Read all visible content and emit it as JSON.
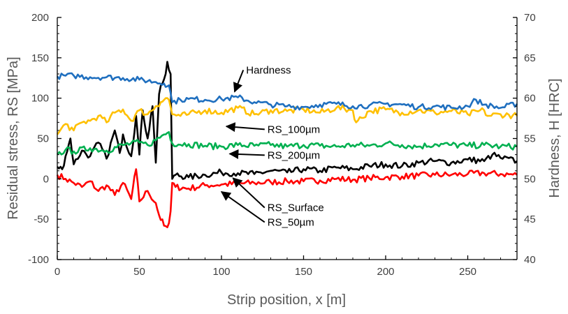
{
  "chart_data": {
    "type": "line",
    "xlabel": "Strip position, x [m]",
    "ylabel": "Residual stress, RS [MPa]",
    "y2label": "Hardness, H [HRC]",
    "xlim": [
      0,
      280
    ],
    "ylim": [
      -100,
      200
    ],
    "y2lim": [
      40,
      70
    ],
    "xticks": [
      0,
      50,
      100,
      150,
      200,
      250
    ],
    "yticks": [
      -100,
      -50,
      0,
      50,
      100,
      150,
      200
    ],
    "y2ticks": [
      40,
      45,
      50,
      55,
      60,
      65,
      70
    ],
    "grid": false,
    "legend": "none",
    "series": [
      {
        "name": "Hardness",
        "axis": "right",
        "color": "#1f6fbf",
        "x": [
          0,
          10,
          20,
          30,
          40,
          50,
          60,
          65,
          68,
          70,
          75,
          80,
          90,
          100,
          110,
          120,
          130,
          140,
          150,
          160,
          170,
          180,
          190,
          200,
          210,
          220,
          230,
          240,
          250,
          255,
          260,
          270,
          280
        ],
        "y": [
          62.7,
          62.8,
          62.6,
          62.6,
          62.5,
          62.3,
          62.0,
          61.8,
          61.6,
          59.5,
          59.8,
          59.9,
          59.8,
          59.9,
          60.1,
          59.5,
          59.2,
          59.0,
          58.9,
          59.2,
          59.3,
          59.0,
          59.1,
          59.3,
          59.2,
          58.9,
          59.0,
          58.8,
          59.0,
          59.8,
          59.2,
          58.8,
          59.3
        ]
      },
      {
        "name": "RS_100µm",
        "axis": "left",
        "color": "#ffc000",
        "x": [
          0,
          5,
          10,
          15,
          20,
          25,
          30,
          35,
          40,
          45,
          50,
          55,
          60,
          63,
          66,
          68,
          70,
          75,
          80,
          90,
          100,
          110,
          120,
          130,
          140,
          150,
          160,
          170,
          180,
          182,
          190,
          200,
          210,
          220,
          230,
          240,
          250,
          260,
          262,
          270,
          280
        ],
        "y": [
          55,
          68,
          60,
          70,
          72,
          78,
          70,
          82,
          86,
          72,
          85,
          80,
          90,
          95,
          100,
          98,
          80,
          78,
          80,
          85,
          82,
          88,
          80,
          85,
          84,
          86,
          82,
          88,
          85,
          70,
          84,
          86,
          82,
          85,
          82,
          84,
          80,
          85,
          78,
          80,
          78
        ]
      },
      {
        "name": "RS_200µm",
        "axis": "left",
        "color": "#00b050",
        "x": [
          0,
          5,
          10,
          20,
          30,
          40,
          50,
          55,
          60,
          65,
          68,
          70,
          80,
          90,
          100,
          110,
          120,
          130,
          140,
          150,
          160,
          170,
          180,
          190,
          200,
          210,
          220,
          230,
          240,
          250,
          260,
          270,
          280
        ],
        "y": [
          30,
          36,
          34,
          38,
          35,
          42,
          45,
          42,
          48,
          55,
          58,
          44,
          43,
          41,
          40,
          42,
          41,
          42,
          40,
          42,
          41,
          40,
          42,
          41,
          44,
          42,
          40,
          43,
          42,
          41,
          42,
          40,
          40
        ]
      },
      {
        "name": "RS_Surface",
        "axis": "left",
        "color": "#000000",
        "x": [
          0,
          3,
          5,
          8,
          10,
          15,
          20,
          25,
          30,
          35,
          38,
          40,
          45,
          48,
          50,
          52,
          55,
          58,
          60,
          62,
          64,
          66,
          67,
          68,
          69,
          70,
          72,
          80,
          90,
          100,
          110,
          120,
          130,
          140,
          150,
          160,
          170,
          180,
          190,
          200,
          210,
          220,
          230,
          240,
          250,
          260,
          265,
          270,
          280
        ],
        "y": [
          15,
          12,
          28,
          50,
          18,
          35,
          28,
          45,
          25,
          60,
          32,
          55,
          28,
          78,
          30,
          85,
          50,
          90,
          20,
          105,
          118,
          130,
          145,
          135,
          130,
          0,
          5,
          2,
          5,
          8,
          7,
          6,
          10,
          8,
          12,
          10,
          14,
          12,
          16,
          18,
          16,
          20,
          22,
          20,
          24,
          22,
          30,
          26,
          22
        ]
      },
      {
        "name": "RS_50µm",
        "axis": "left",
        "color": "#ff0000",
        "x": [
          0,
          5,
          10,
          15,
          20,
          25,
          30,
          35,
          40,
          45,
          48,
          50,
          55,
          60,
          62,
          65,
          67,
          68,
          69,
          70,
          72,
          80,
          90,
          100,
          110,
          120,
          130,
          140,
          150,
          160,
          170,
          180,
          190,
          200,
          210,
          220,
          230,
          240,
          250,
          260,
          270,
          280
        ],
        "y": [
          5,
          0,
          -5,
          -10,
          -3,
          -15,
          -8,
          -20,
          -5,
          -25,
          12,
          -28,
          -15,
          -30,
          -45,
          -58,
          -60,
          -55,
          -40,
          -5,
          -10,
          -12,
          -8,
          -7,
          -6,
          -5,
          -4,
          -3,
          -3,
          -2,
          0,
          -1,
          1,
          2,
          3,
          4,
          5,
          5,
          6,
          7,
          6,
          5
        ]
      }
    ],
    "annotations": [
      {
        "text": "Hardness",
        "label_x": 115,
        "label_y": 130.5,
        "arrow_to_x": 108,
        "arrow_to_y": 108
      },
      {
        "text": "RS_100µm",
        "label_x": 128,
        "label_y": 57,
        "arrow_to_x": 103,
        "arrow_to_y": 65
      },
      {
        "text": "RS_200µm",
        "label_x": 128,
        "label_y": 25,
        "arrow_to_x": 105,
        "arrow_to_y": 31
      },
      {
        "text": "RS_Surface",
        "label_x": 128,
        "label_y": -40,
        "arrow_to_x": 107,
        "arrow_to_y": 1
      },
      {
        "text": "RS_50µm",
        "label_x": 128,
        "label_y": -58,
        "arrow_to_x": 100,
        "arrow_to_y": -16
      }
    ]
  }
}
